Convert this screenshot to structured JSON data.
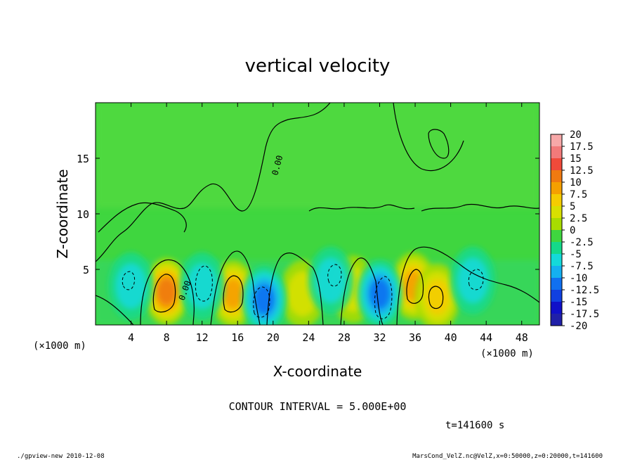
{
  "chart_data": {
    "type": "heatmap",
    "title": "vertical velocity",
    "xlabel": "X-coordinate",
    "ylabel": "Z-coordinate",
    "x_unit_left": "(×1000 m)",
    "x_unit_right": "(×1000 m)",
    "xlim": [
      0,
      50
    ],
    "ylim": [
      0,
      20
    ],
    "xticks": [
      "4",
      "8",
      "12",
      "16",
      "20",
      "24",
      "28",
      "32",
      "36",
      "40",
      "44",
      "48"
    ],
    "xtick_values": [
      4,
      8,
      12,
      16,
      20,
      24,
      28,
      32,
      36,
      40,
      44,
      48
    ],
    "yticks": [
      "5",
      "10",
      "15"
    ],
    "ytick_values": [
      5,
      10,
      15
    ],
    "contour_label": "0.00",
    "contour_interval_text": "CONTOUR INTERVAL = 5.000E+00",
    "time_text": "t=141600 s",
    "colorbar": {
      "labels": [
        "20",
        "17.5",
        "15",
        "12.5",
        "10",
        "7.5",
        "5",
        "2.5",
        "0",
        "-2.5",
        "-5",
        "-7.5",
        "-10",
        "-12.5",
        "-15",
        "-17.5",
        "-20"
      ],
      "colors": [
        "#f7a8a8",
        "#f27a7a",
        "#f04a3a",
        "#f07a10",
        "#f5a000",
        "#f5cc00",
        "#d8e000",
        "#a8dc00",
        "#3fd63f",
        "#14d98a",
        "#14d9d9",
        "#14b0f0",
        "#1070f0",
        "#1040e0",
        "#1010c8",
        "#2020a8",
        "#7020b0"
      ]
    },
    "features": [
      {
        "kind": "updraft",
        "x": 8.0,
        "z": 3.0,
        "w": 12
      },
      {
        "kind": "updraft",
        "x": 15.5,
        "z": 2.8,
        "w": 11
      },
      {
        "kind": "updraft",
        "x": 23.3,
        "z": 2.8,
        "w": 5
      },
      {
        "kind": "updraft",
        "x": 29.0,
        "z": 3.2,
        "w": 4
      },
      {
        "kind": "updraft",
        "x": 35.8,
        "z": 3.5,
        "w": 11
      },
      {
        "kind": "updraft",
        "x": 38.5,
        "z": 2.5,
        "w": 7
      },
      {
        "kind": "downdraft",
        "x": 4.0,
        "z": 3.5,
        "w": -5
      },
      {
        "kind": "downdraft",
        "x": 12.0,
        "z": 3.5,
        "w": -6
      },
      {
        "kind": "downdraft",
        "x": 19.0,
        "z": 2.3,
        "w": -9
      },
      {
        "kind": "downdraft",
        "x": 26.5,
        "z": 4.0,
        "w": -6
      },
      {
        "kind": "downdraft",
        "x": 32.0,
        "z": 2.8,
        "w": -10
      },
      {
        "kind": "downdraft",
        "x": 42.5,
        "z": 4.0,
        "w": -4
      }
    ]
  },
  "footer": {
    "left": "./gpview-new  2010-12-08",
    "right": "MarsCond_VelZ.nc@VelZ,x=0:50000,z=0:20000,t=141600"
  }
}
